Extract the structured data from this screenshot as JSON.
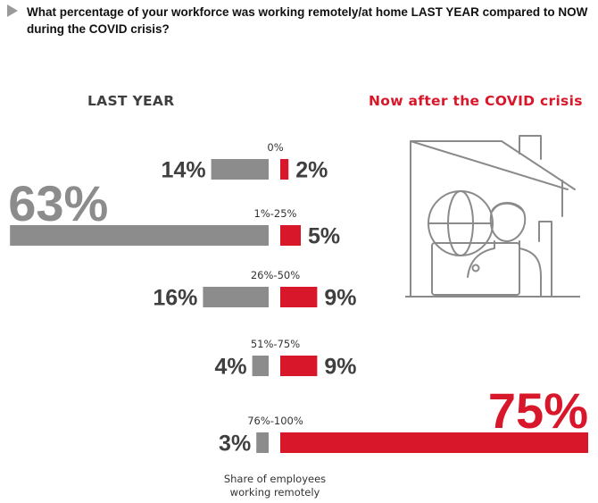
{
  "question": "What percentage of your workforce was working remotely/at home LAST YEAR compared to NOW during the COVID crisis?",
  "left_label": "LAST YEAR",
  "right_label": "Now after the COVID crisis",
  "axis_caption_line1": "Share of employees",
  "axis_caption_line2": "working remotely",
  "colors": {
    "last_year": "#8c8c8c",
    "now": "#d8172a",
    "label_text": "#3f3f3f"
  },
  "chart_data": {
    "type": "bar",
    "orientation": "horizontal-back-to-back",
    "unit": "%",
    "categories": [
      "0%",
      "1%-25%",
      "26%-50%",
      "51%-75%",
      "76%-100%"
    ],
    "series": [
      {
        "name": "LAST YEAR",
        "values": [
          14,
          63,
          16,
          4,
          3
        ],
        "labels": [
          "14%",
          "63%",
          "16%",
          "4%",
          "3%"
        ]
      },
      {
        "name": "Now after the COVID crisis",
        "values": [
          2,
          5,
          9,
          9,
          75
        ],
        "labels": [
          "2%",
          "5%",
          "9%",
          "9%",
          "75%"
        ]
      }
    ],
    "xlabel": "Share of employees working remotely"
  }
}
